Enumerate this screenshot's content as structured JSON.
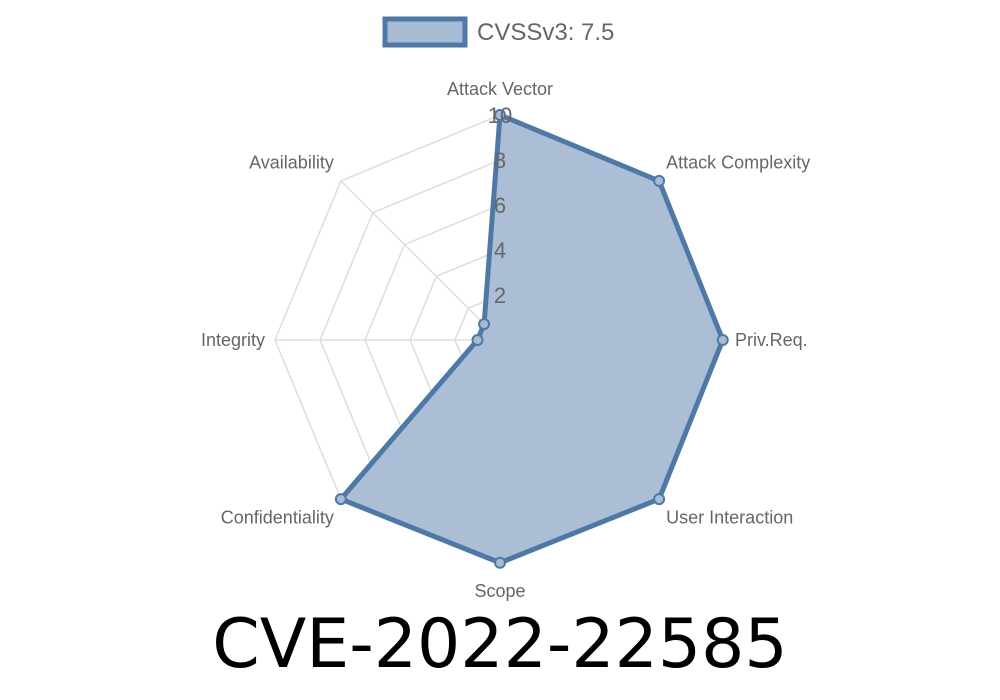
{
  "chart_data": {
    "type": "radar",
    "title": "CVE-2022-22585",
    "axes": [
      "Attack Vector",
      "Attack Complexity",
      "Priv.Req.",
      "User Interaction",
      "Scope",
      "Confidentiality",
      "Integrity",
      "Availability"
    ],
    "series": [
      {
        "name": "CVSSv3: 7.5",
        "values": [
          10,
          10,
          9.9,
          10,
          9.9,
          10,
          1,
          1
        ]
      }
    ],
    "rlim": [
      0,
      10
    ],
    "ticks": [
      "2",
      "4",
      "6",
      "8",
      "10"
    ],
    "tick_values": [
      2,
      4,
      6,
      8,
      10
    ],
    "grid": true,
    "legend_position": "top",
    "colors": {
      "stroke": "#4e79a7",
      "fill": "#a7bbd4",
      "grid": "#dddddd",
      "text": "#666666"
    }
  }
}
